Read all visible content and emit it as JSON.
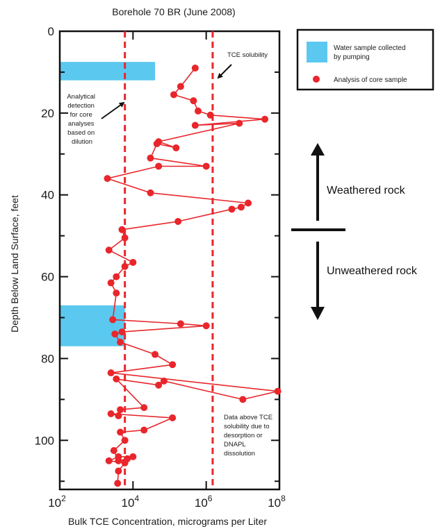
{
  "chart_data": {
    "type": "line",
    "title": "Borehole 70 BR (June 2008)",
    "xlabel": "Bulk TCE Concentration, micrograms per Liter",
    "ylabel": "Depth Below Land Surface, feet",
    "xscale": "log",
    "xlim": [
      100,
      100000000
    ],
    "ylim": [
      112,
      0
    ],
    "grid": false,
    "legend_position": "top-right",
    "x_ticks": [
      {
        "value": 100,
        "base": "10",
        "exp": "2"
      },
      {
        "value": 10000,
        "base": "10",
        "exp": "4"
      },
      {
        "value": 1000000,
        "base": "10",
        "exp": "6"
      },
      {
        "value": 100000000,
        "base": "10",
        "exp": "8"
      }
    ],
    "y_ticks": [
      0,
      20,
      40,
      60,
      80,
      100
    ],
    "y_minor_ticks": [
      10,
      30,
      50,
      70,
      90,
      110
    ],
    "series": [
      {
        "name": "Analysis of core sample",
        "color": "#e8262b",
        "marker": "circle",
        "points": [
          [
            500000,
            9
          ],
          [
            200000,
            13.5
          ],
          [
            130000,
            15.5
          ],
          [
            450000,
            17
          ],
          [
            600000,
            19.5
          ],
          [
            1300000,
            20.5
          ],
          [
            40000000,
            21.5
          ],
          [
            500000,
            23
          ],
          [
            8000000,
            22.5
          ],
          [
            50000,
            27
          ],
          [
            150000,
            28.5
          ],
          [
            45000,
            27.5
          ],
          [
            30000,
            31
          ],
          [
            1000000,
            33
          ],
          [
            50000,
            33
          ],
          [
            2000,
            36
          ],
          [
            30000,
            39.5
          ],
          [
            14000000,
            42
          ],
          [
            9000000,
            43
          ],
          [
            5000000,
            43.5
          ],
          [
            170000,
            46.5
          ],
          [
            5000,
            48.5
          ],
          [
            6000,
            50.5
          ],
          [
            2200,
            53.5
          ],
          [
            10000,
            56.5
          ],
          [
            6000,
            57.5
          ],
          [
            3500,
            60
          ],
          [
            2500,
            61.5
          ],
          [
            3500,
            64
          ],
          [
            2800,
            70.5
          ],
          [
            200000,
            71.5
          ],
          [
            1000000,
            72
          ],
          [
            5000,
            73.5
          ],
          [
            3200,
            74
          ],
          [
            4500,
            76
          ],
          [
            40000,
            79
          ],
          [
            120000,
            81.5
          ],
          [
            2500,
            83.5
          ],
          [
            90000000,
            88
          ],
          [
            10000000,
            90
          ],
          [
            70000,
            85.5
          ],
          [
            50000,
            86.5
          ],
          [
            3500,
            85
          ],
          [
            20000,
            92
          ],
          [
            4500,
            92.5
          ],
          [
            4000,
            94
          ],
          [
            2500,
            93.5
          ],
          [
            120000,
            94.5
          ],
          [
            20000,
            97.5
          ],
          [
            4500,
            98
          ],
          [
            6000,
            100
          ],
          [
            3000,
            102.5
          ],
          [
            4000,
            105
          ],
          [
            7000,
            104.5
          ],
          [
            10000,
            104
          ],
          [
            4000,
            104
          ],
          [
            2200,
            105
          ],
          [
            6000,
            105.5
          ],
          [
            4000,
            107.5
          ],
          [
            3800,
            110.5
          ]
        ]
      }
    ],
    "reference_lines": [
      {
        "name": "Analytical detection for core analyses based on dilution",
        "x": 6000,
        "style": "dashed",
        "color": "#e8262b"
      },
      {
        "name": "TCE solubility",
        "x": 1500000,
        "style": "dashed",
        "color": "#e8262b"
      }
    ],
    "water_sample_intervals": [
      {
        "depth_top": 7.5,
        "depth_bottom": 12,
        "x_max": 40000
      },
      {
        "depth_top": 67,
        "depth_bottom": 77,
        "x_max": 6000
      }
    ],
    "annotations": {
      "detection_note": [
        "Analytical",
        "detection",
        "for core",
        "analyses",
        "based on",
        "dilution"
      ],
      "solubility_label": "TCE solubility",
      "data_above_note": [
        "Data above TCE",
        "solubility due to",
        "desorption or",
        "DNAPL",
        "dissolution"
      ],
      "weathered": "Weathered rock",
      "unweathered": "Unweathered rock",
      "weathering_boundary_depth": 50
    },
    "legend": {
      "water_label_lines": [
        "Water sample collected",
        "by pumping"
      ],
      "core_label": "Analysis of core sample"
    }
  },
  "colors": {
    "water_sample": "#5bc8ef",
    "data_red": "#e8262b",
    "axis": "#111111"
  }
}
